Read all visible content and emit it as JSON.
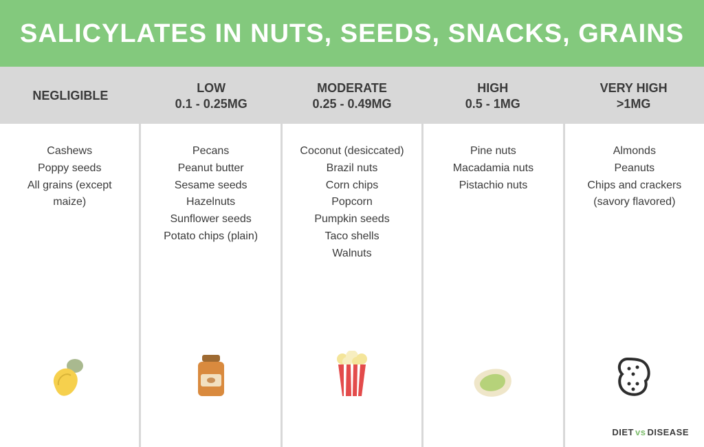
{
  "title": "SALICYLATES IN NUTS, SEEDS, SNACKS, GRAINS",
  "title_style": {
    "bg": "#83c97d",
    "fg": "#ffffff",
    "fontsize": 38
  },
  "header_bg": "#d8d8d8",
  "body_bg": "#ffffff",
  "divider_color": "#d8d8d8",
  "text_color": "#3a3a3a",
  "columns": [
    {
      "label": "NEGLIGIBLE",
      "range": "",
      "items": [
        "Cashews",
        "Poppy seeds",
        "All grains (except maize)"
      ],
      "icon": "cashew"
    },
    {
      "label": "LOW",
      "range": "0.1 - 0.25MG",
      "items": [
        "Pecans",
        "Peanut butter",
        "Sesame seeds",
        "Hazelnuts",
        "Sunflower seeds",
        "Potato chips (plain)"
      ],
      "icon": "jar"
    },
    {
      "label": "MODERATE",
      "range": "0.25 - 0.49MG",
      "items": [
        "Coconut (desiccated)",
        "Brazil nuts",
        "Corn chips",
        "Popcorn",
        "Pumpkin seeds",
        "Taco shells",
        "Walnuts"
      ],
      "icon": "popcorn"
    },
    {
      "label": "HIGH",
      "range": "0.5 - 1MG",
      "items": [
        "Pine nuts",
        "Macadamia nuts",
        "Pistachio nuts"
      ],
      "icon": "pistachio"
    },
    {
      "label": "VERY HIGH",
      "range": ">1MG",
      "items": [
        "Almonds",
        "Peanuts",
        "Chips and crackers (savory flavored)"
      ],
      "icon": "peanut"
    }
  ],
  "brand": {
    "left": "DIET",
    "mid": "vs",
    "right": "DISEASE",
    "accent": "#7dbd6c"
  },
  "icon_colors": {
    "cashew_body": "#f6d04d",
    "cashew_top": "#a9b98f",
    "jar_body": "#d98a3e",
    "jar_cap": "#9e6a32",
    "jar_label": "#f2e0c0",
    "popcorn_box": "#e34b4b",
    "popcorn_stripe": "#ffffff",
    "popcorn_corn": "#f4e59a",
    "pistachio_shell": "#efe6c9",
    "pistachio_nut": "#b6d27a",
    "peanut_outline": "#2d2d2d"
  }
}
